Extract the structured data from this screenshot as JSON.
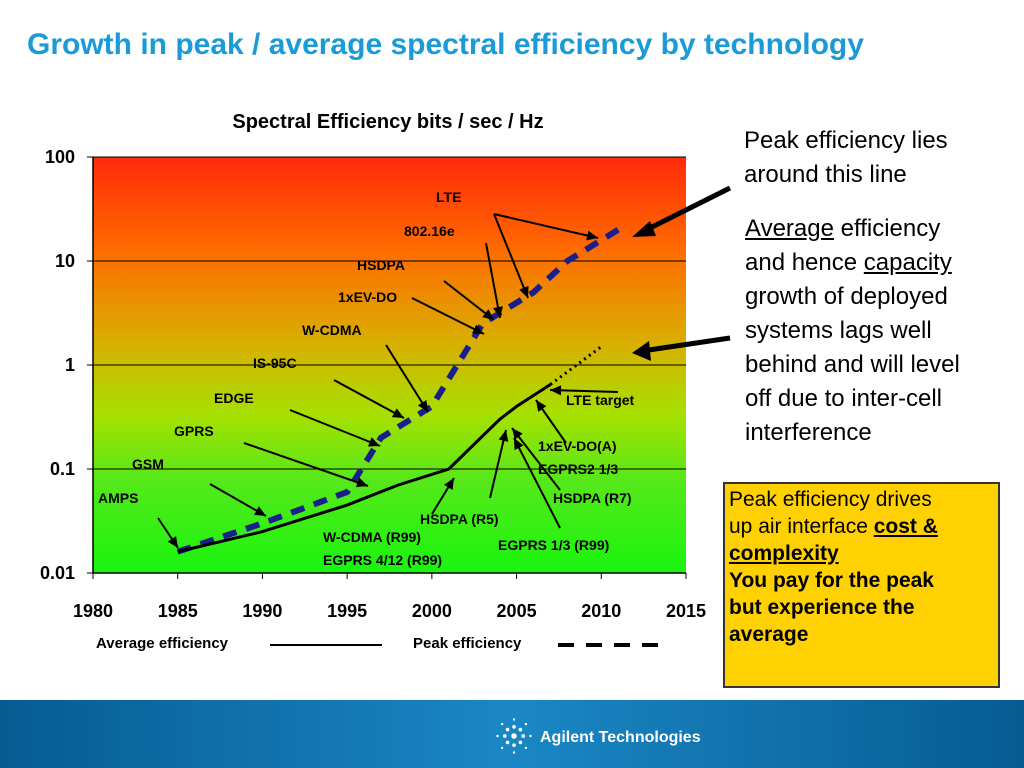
{
  "slide": {
    "title": "Growth in peak / average spectral efficiency by technology"
  },
  "chart_data": {
    "type": "line",
    "title": "Spectral Efficiency bits / sec / Hz",
    "xlabel": "",
    "ylabel": "",
    "xlim": [
      1980,
      2015
    ],
    "ylim": [
      0.01,
      100
    ],
    "yscale": "log",
    "x_ticks": [
      "1980",
      "1985",
      "1990",
      "1995",
      "2000",
      "2005",
      "2010",
      "2015"
    ],
    "y_ticks": [
      "100",
      "10",
      "1",
      "0.1",
      "0.01"
    ],
    "background": "vertical gradient red (top) to orange to yellow to green (bottom)",
    "legend": [
      {
        "label": "Average efficiency",
        "style": "solid"
      },
      {
        "label": "Peak efficiency",
        "style": "dashed"
      }
    ],
    "series": [
      {
        "name": "Average efficiency",
        "color": "#000000",
        "x": [
          1985,
          1990,
          1995,
          1998,
          2001,
          2004,
          2005,
          2007
        ],
        "y": [
          0.016,
          0.025,
          0.045,
          0.07,
          0.1,
          0.3,
          0.4,
          0.65
        ]
      },
      {
        "name": "Peak efficiency",
        "color": "#1a1f8c",
        "x": [
          1985,
          1990,
          1995,
          1997,
          2000,
          2003,
          2006,
          2008,
          2011
        ],
        "y": [
          0.016,
          0.03,
          0.06,
          0.2,
          0.4,
          2.5,
          5,
          10,
          20
        ]
      }
    ],
    "dotted_segments": [
      {
        "x": [
          2007,
          2010
        ],
        "y": [
          0.65,
          1.5
        ],
        "color": "#000000"
      }
    ],
    "annotations": {
      "LTE": "LTE",
      "e80216": "802.16e",
      "HSDPA": "HSDPA",
      "EVDO": "1xEV-DO",
      "WCDMA": "W-CDMA",
      "IS95C": "IS-95C",
      "EDGE": "EDGE",
      "GPRS": "GPRS",
      "GSM": "GSM",
      "AMPS": "AMPS",
      "LTE_target": "LTE target",
      "EVDO_A": "1xEV-DO(A)",
      "EGPRS2": "EGPRS2 1/3",
      "HSDPA_R7": "HSDPA (R7)",
      "HSDPA_R5": "HSDPA (R5)",
      "WCDMA_R99": "W-CDMA (R99)",
      "EGPRS412": "EGPRS 4/12 (R99)",
      "EGPRS13": "EGPRS 1/3 (R99)"
    }
  },
  "side": {
    "peak_line1": "Peak efficiency lies",
    "peak_line2": "around this line",
    "avg_word": "Average",
    "avg_after": " efficiency",
    "avg_line2a": "and hence ",
    "avg_capacity": "capacity",
    "avg_line3": "growth of deployed",
    "avg_line4": "systems lags well",
    "avg_line5": "behind and will level",
    "avg_line6": "off due to inter-cell",
    "avg_line7": "interference"
  },
  "box": {
    "line1": "Peak efficiency drives",
    "line2a": "up air interface ",
    "line2b": "cost &",
    "line3": "complexity",
    "line4": "You pay for the peak",
    "line5": "but experience the",
    "line6": "average"
  },
  "footer": {
    "brand": "Agilent Technologies"
  }
}
